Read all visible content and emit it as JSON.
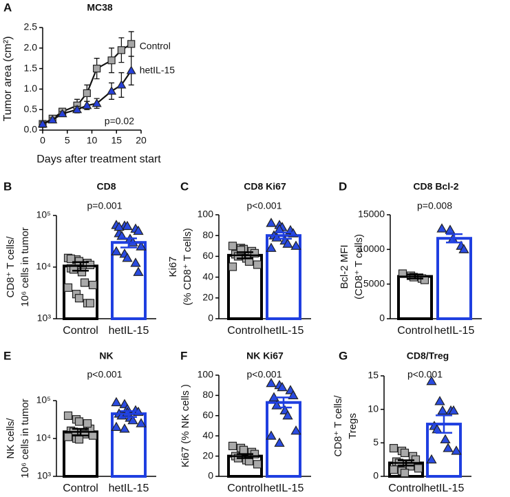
{
  "chart_data": [
    {
      "type": "line",
      "panel": "A",
      "title": "MC38",
      "x_label": "Days after treatment start",
      "y_label": [
        "Tumor area (cm²)"
      ],
      "annotation": "p=0.02",
      "x": [
        0,
        2,
        4,
        7,
        9,
        11,
        14,
        16,
        18
      ],
      "series": [
        {
          "name": "Control",
          "color": "#a6a6a6",
          "marker": "square",
          "values": [
            0.15,
            0.28,
            0.45,
            0.6,
            0.9,
            1.5,
            1.7,
            1.95,
            2.1
          ],
          "errors": [
            0.05,
            0.05,
            0.08,
            0.15,
            0.2,
            0.25,
            0.3,
            0.3,
            0.3
          ]
        },
        {
          "name": "hetIL-15",
          "color": "#2640d8",
          "marker": "triangle",
          "values": [
            0.15,
            0.25,
            0.4,
            0.5,
            0.6,
            0.65,
            0.95,
            1.1,
            1.45
          ],
          "errors": [
            0.05,
            0.05,
            0.05,
            0.08,
            0.1,
            0.12,
            0.2,
            0.3,
            0.35
          ]
        }
      ],
      "xlim": [
        0,
        20
      ],
      "xticks": [
        0,
        5,
        10,
        15,
        20
      ],
      "ylim": [
        0,
        2.5
      ],
      "yticks": [
        {
          "value": 0,
          "label": "0.0"
        },
        0.5,
        {
          "value": 1,
          "label": "1.0"
        },
        1.5,
        {
          "value": 2,
          "label": "2.0"
        },
        2.5
      ]
    },
    {
      "type": "bar",
      "panel": "B",
      "title": "CD8",
      "annotation": "p=0.001",
      "y_label": [
        "CD8⁺ T cells/",
        "10⁶ cells in tumor"
      ],
      "log_scale": true,
      "categories": [
        "Control",
        "hetIL-15"
      ],
      "values": [
        10500,
        30000
      ],
      "errors": [
        2000,
        6000
      ],
      "bar_colors": [
        "#000000",
        "#1f3fe0"
      ],
      "point_colors": [
        "#a9a9a9",
        "#2a4be0"
      ],
      "markers": [
        "square",
        "triangle"
      ],
      "points": [
        [
          15000,
          14000,
          13000,
          12000,
          11000,
          9500,
          9000,
          8000,
          5000,
          4500,
          4000,
          3000,
          2500,
          2000,
          2000,
          14500
        ],
        [
          65000,
          63000,
          62000,
          55000,
          50000,
          45000,
          40000,
          35000,
          30000,
          25000,
          20000,
          18000,
          15000,
          12000,
          8000,
          60000
        ]
      ],
      "ylim": [
        1000,
        100000
      ],
      "yticks": [
        {
          "value": 1000,
          "label": "10³"
        },
        {
          "value": 10000,
          "label": "10⁴"
        },
        {
          "value": 100000,
          "label": "10⁵"
        }
      ]
    },
    {
      "type": "bar",
      "panel": "C",
      "title": "CD8 Ki67",
      "annotation": "p<0.001",
      "y_label": [
        "Ki67",
        "(% CD8⁺ T cells)"
      ],
      "log_scale": false,
      "categories": [
        "Control",
        "hetIL-15"
      ],
      "values": [
        61,
        80
      ],
      "errors": [
        3,
        3
      ],
      "bar_colors": [
        "#000000",
        "#1f3fe0"
      ],
      "point_colors": [
        "#a9a9a9",
        "#2a4be0"
      ],
      "markers": [
        "square",
        "triangle"
      ],
      "points": [
        [
          70,
          68,
          67,
          65,
          63,
          62,
          60,
          58,
          55,
          52,
          50,
          66
        ],
        [
          92,
          90,
          88,
          85,
          82,
          80,
          78,
          75,
          72,
          70,
          68,
          86
        ]
      ],
      "ylim": [
        0,
        100
      ],
      "yticks": [
        0,
        20,
        40,
        60,
        80,
        100
      ]
    },
    {
      "type": "bar",
      "panel": "D",
      "title": "CD8 Bcl-2",
      "annotation": "p=0.008",
      "y_label": [
        "Bcl-2 MFI",
        "(CD8⁺ T cells)"
      ],
      "log_scale": false,
      "categories": [
        "Control",
        "hetIL-15"
      ],
      "values": [
        6100,
        11600
      ],
      "errors": [
        300,
        600
      ],
      "bar_colors": [
        "#000000",
        "#1f3fe0"
      ],
      "point_colors": [
        "#a9a9a9",
        "#2a4be0"
      ],
      "markers": [
        "square",
        "triangle"
      ],
      "points": [
        [
          6500,
          6200,
          6000,
          5800,
          5600
        ],
        [
          13000,
          12800,
          11500,
          10500,
          10000
        ]
      ],
      "ylim": [
        0,
        15000
      ],
      "yticks": [
        0,
        5000,
        10000,
        15000
      ]
    },
    {
      "type": "bar",
      "panel": "E",
      "title": "NK",
      "annotation": "p<0.001",
      "y_label": [
        "NK cells/",
        "10⁶ cells in tumor"
      ],
      "log_scale": true,
      "categories": [
        "Control",
        "hetIL-15"
      ],
      "values": [
        15000,
        45000
      ],
      "errors": [
        3000,
        8000
      ],
      "bar_colors": [
        "#000000",
        "#1f3fe0"
      ],
      "point_colors": [
        "#a9a9a9",
        "#2a4be0"
      ],
      "markers": [
        "square",
        "triangle"
      ],
      "points": [
        [
          40000,
          32000,
          28000,
          20000,
          18000,
          16000,
          15000,
          14000,
          13000,
          12000,
          11000,
          10000,
          9500,
          25000
        ],
        [
          90000,
          80000,
          60000,
          55000,
          50000,
          45000,
          40000,
          35000,
          30000,
          25000,
          20000,
          18000,
          48000
        ]
      ],
      "ylim": [
        1000,
        100000
      ],
      "yticks": [
        {
          "value": 1000,
          "label": "10³"
        },
        {
          "value": 10000,
          "label": "10⁴"
        },
        {
          "value": 100000,
          "label": "10⁵"
        }
      ]
    },
    {
      "type": "bar",
      "panel": "F",
      "title": "NK Ki67",
      "annotation": "p<0.001",
      "y_label": [
        "Ki67 (% NK cells )"
      ],
      "log_scale": false,
      "categories": [
        "Control",
        "hetIL-15"
      ],
      "values": [
        20,
        73
      ],
      "errors": [
        2,
        5
      ],
      "bar_colors": [
        "#000000",
        "#1f3fe0"
      ],
      "point_colors": [
        "#a9a9a9",
        "#2a4be0"
      ],
      "markers": [
        "square",
        "triangle"
      ],
      "points": [
        [
          30,
          28,
          26,
          24,
          22,
          20,
          18,
          16,
          15,
          12
        ],
        [
          92,
          90,
          88,
          85,
          80,
          78,
          70,
          65,
          60,
          45,
          40,
          33
        ]
      ],
      "ylim": [
        0,
        100
      ],
      "yticks": [
        0,
        20,
        40,
        60,
        80,
        100
      ]
    },
    {
      "type": "bar",
      "panel": "G",
      "title": "CD8/Treg",
      "annotation": "p<0.001",
      "y_label": [
        "CD8⁺ T cells/",
        "Tregs"
      ],
      "log_scale": false,
      "categories": [
        "Control",
        "hetIL-15"
      ],
      "values": [
        2.0,
        7.8
      ],
      "errors": [
        0.4,
        1.3
      ],
      "bar_colors": [
        "#000000",
        "#1f3fe0"
      ],
      "point_colors": [
        "#a9a9a9",
        "#2a4be0"
      ],
      "markers": [
        "square",
        "triangle"
      ],
      "points": [
        [
          4.2,
          3.8,
          3.5,
          3.0,
          2.5,
          2.2,
          2.0,
          1.8,
          1.5,
          1.2,
          1.0,
          0.8,
          0.5
        ],
        [
          14.2,
          11.2,
          9.8,
          9.8,
          9.8,
          7.5,
          7.0,
          5.5,
          4.2,
          3.8,
          2.5
        ]
      ],
      "ylim": [
        0,
        15
      ],
      "yticks": [
        0,
        5,
        10,
        15
      ]
    }
  ]
}
